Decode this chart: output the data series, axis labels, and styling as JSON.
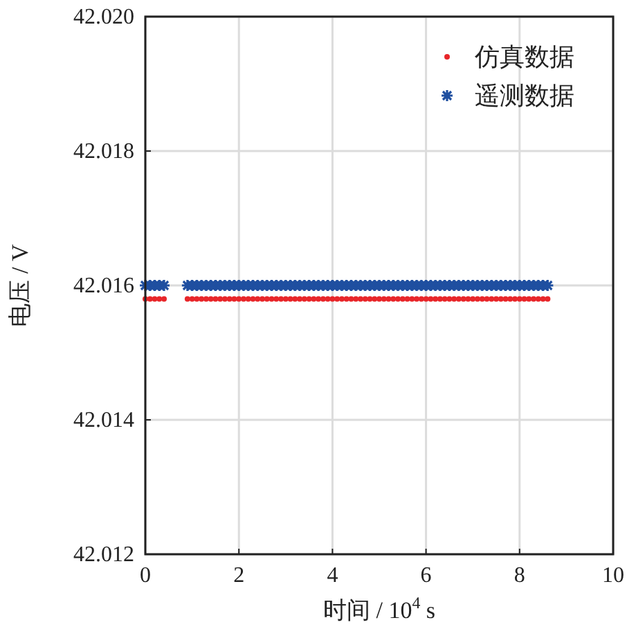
{
  "chart_data": {
    "type": "scatter",
    "xlabel": "时间 / 10$^{4}$ s",
    "ylabel": "电压 / V",
    "xlim": [
      0,
      10
    ],
    "xticks": [
      0,
      2,
      4,
      6,
      8,
      10
    ],
    "ylim": [
      42.012,
      42.02
    ],
    "yticks": [
      42.012,
      42.014,
      42.016,
      42.018,
      {
        "value": 42.02,
        "label": "42.020"
      }
    ],
    "grid": true,
    "legend": "top right",
    "series": [
      {
        "name": "仿真数据",
        "color": "#e8262a",
        "marker": "circle",
        "x": [
          0,
          0.1,
          0.2,
          0.3,
          0.4,
          0.9,
          1,
          1.1,
          1.2,
          1.3,
          1.4,
          1.5,
          1.6,
          1.7,
          1.8,
          1.9,
          2,
          2.1,
          2.2,
          2.3,
          2.4,
          2.5,
          2.6,
          2.7,
          2.8,
          2.9,
          3,
          3.1,
          3.2,
          3.3,
          3.4,
          3.5,
          3.6,
          3.7,
          3.8,
          3.9,
          4,
          4.1,
          4.2,
          4.3,
          4.4,
          4.5,
          4.6,
          4.7,
          4.8,
          4.9,
          5,
          5.1,
          5.2,
          5.3,
          5.4,
          5.5,
          5.6,
          5.7,
          5.8,
          5.9,
          6,
          6.1,
          6.2,
          6.3,
          6.4,
          6.5,
          6.6,
          6.7,
          6.8,
          6.9,
          7,
          7.1,
          7.2,
          7.3,
          7.4,
          7.5,
          7.6,
          7.7,
          7.8,
          7.9,
          8,
          8.1,
          8.2,
          8.3,
          8.4,
          8.5,
          8.6
        ],
        "values": [
          42.0158,
          42.0158,
          42.0158,
          42.0158,
          42.0158,
          42.0158,
          42.0158,
          42.0158,
          42.0158,
          42.0158,
          42.0158,
          42.0158,
          42.0158,
          42.0158,
          42.0158,
          42.0158,
          42.0158,
          42.0158,
          42.0158,
          42.0158,
          42.0158,
          42.0158,
          42.0158,
          42.0158,
          42.0158,
          42.0158,
          42.0158,
          42.0158,
          42.0158,
          42.0158,
          42.0158,
          42.0158,
          42.0158,
          42.0158,
          42.0158,
          42.0158,
          42.0158,
          42.0158,
          42.0158,
          42.0158,
          42.0158,
          42.0158,
          42.0158,
          42.0158,
          42.0158,
          42.0158,
          42.0158,
          42.0158,
          42.0158,
          42.0158,
          42.0158,
          42.0158,
          42.0158,
          42.0158,
          42.0158,
          42.0158,
          42.0158,
          42.0158,
          42.0158,
          42.0158,
          42.0158,
          42.0158,
          42.0158,
          42.0158,
          42.0158,
          42.0158,
          42.0158,
          42.0158,
          42.0158,
          42.0158,
          42.0158,
          42.0158,
          42.0158,
          42.0158,
          42.0158,
          42.0158,
          42.0158,
          42.0158,
          42.0158,
          42.0158,
          42.0158,
          42.0158,
          42.0158
        ]
      },
      {
        "name": "遥测数据",
        "color": "#1f4fa0",
        "marker": "cross",
        "x": [
          0,
          0.1,
          0.2,
          0.3,
          0.4,
          0.9,
          1,
          1.1,
          1.2,
          1.3,
          1.4,
          1.5,
          1.6,
          1.7,
          1.8,
          1.9,
          2,
          2.1,
          2.2,
          2.3,
          2.4,
          2.5,
          2.6,
          2.7,
          2.8,
          2.9,
          3,
          3.1,
          3.2,
          3.3,
          3.4,
          3.5,
          3.6,
          3.7,
          3.8,
          3.9,
          4,
          4.1,
          4.2,
          4.3,
          4.4,
          4.5,
          4.6,
          4.7,
          4.8,
          4.9,
          5,
          5.1,
          5.2,
          5.3,
          5.4,
          5.5,
          5.6,
          5.7,
          5.8,
          5.9,
          6,
          6.1,
          6.2,
          6.3,
          6.4,
          6.5,
          6.6,
          6.7,
          6.8,
          6.9,
          7,
          7.1,
          7.2,
          7.3,
          7.4,
          7.5,
          7.6,
          7.7,
          7.8,
          7.9,
          8,
          8.1,
          8.2,
          8.3,
          8.4,
          8.5,
          8.6
        ],
        "values": [
          42.016,
          42.016,
          42.016,
          42.016,
          42.016,
          42.016,
          42.016,
          42.016,
          42.016,
          42.016,
          42.016,
          42.016,
          42.016,
          42.016,
          42.016,
          42.016,
          42.016,
          42.016,
          42.016,
          42.016,
          42.016,
          42.016,
          42.016,
          42.016,
          42.016,
          42.016,
          42.016,
          42.016,
          42.016,
          42.016,
          42.016,
          42.016,
          42.016,
          42.016,
          42.016,
          42.016,
          42.016,
          42.016,
          42.016,
          42.016,
          42.016,
          42.016,
          42.016,
          42.016,
          42.016,
          42.016,
          42.016,
          42.016,
          42.016,
          42.016,
          42.016,
          42.016,
          42.016,
          42.016,
          42.016,
          42.016,
          42.016,
          42.016,
          42.016,
          42.016,
          42.016,
          42.016,
          42.016,
          42.016,
          42.016,
          42.016,
          42.016,
          42.016,
          42.016,
          42.016,
          42.016,
          42.016,
          42.016,
          42.016,
          42.016,
          42.016,
          42.016,
          42.016,
          42.016,
          42.016,
          42.016,
          42.016,
          42.016
        ]
      }
    ]
  }
}
